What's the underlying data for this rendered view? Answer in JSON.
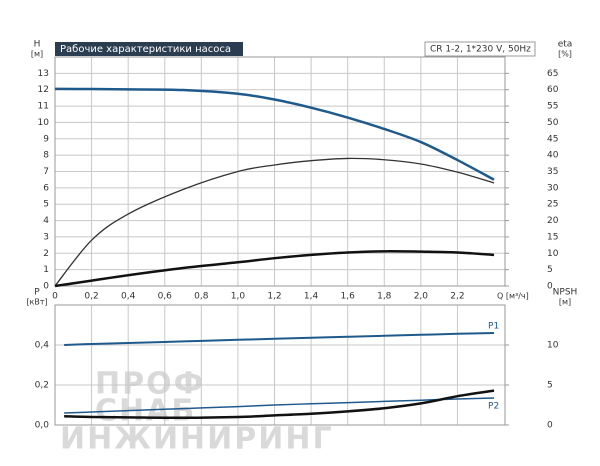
{
  "chart_data": [
    {
      "type": "line",
      "title": "Рабочие характеристики насоса",
      "subtitle": "CR 1-2, 1*230 V, 50Hz",
      "y_label": "H",
      "y_unit": "[м]",
      "y2_label": "eta",
      "y2_unit": "[%]",
      "x_label": "Q [м³/ч]",
      "x": [
        0,
        0.2,
        0.4,
        0.7,
        1.0,
        1.2,
        1.4,
        1.6,
        1.8,
        2.0,
        2.2,
        2.4
      ],
      "xlim": [
        0,
        2.46
      ],
      "xticks": [
        0,
        {
          "value": 0.2,
          "label": "0,2"
        },
        {
          "value": 0.4,
          "label": "0,4"
        },
        {
          "value": 0.6,
          "label": "0,6"
        },
        {
          "value": 0.8,
          "label": "0,8"
        },
        {
          "value": 1.0,
          "label": "1,0"
        },
        {
          "value": 1.2,
          "label": "1,2"
        },
        {
          "value": 1.4,
          "label": "1,4"
        },
        {
          "value": 1.6,
          "label": "1,6"
        },
        {
          "value": 1.8,
          "label": "1,8"
        },
        {
          "value": 2.0,
          "label": "2,0"
        },
        {
          "value": 2.2,
          "label": "2,2"
        }
      ],
      "ylim": [
        0,
        14
      ],
      "yticks": [
        0,
        1,
        2,
        3,
        4,
        5,
        6,
        7,
        8,
        9,
        10,
        11,
        12,
        13
      ],
      "y2lim": [
        0,
        70
      ],
      "y2ticks": [
        0,
        5,
        10,
        15,
        20,
        25,
        30,
        35,
        40,
        45,
        50,
        55,
        60,
        65
      ],
      "grid": true,
      "series": [
        {
          "color": "#1f5a8c",
          "values": [
            12.05,
            12.04,
            12.02,
            11.98,
            11.75,
            11.4,
            10.9,
            10.3,
            9.6,
            8.8,
            7.7,
            6.5
          ]
        },
        {
          "color": "#333333",
          "axis": "y2",
          "values": [
            0,
            14,
            22,
            29.5,
            35,
            37,
            38.3,
            39,
            38.6,
            37.3,
            34.8,
            31.5
          ]
        },
        {
          "color": "#111111",
          "values": [
            0,
            0.33,
            0.66,
            1.1,
            1.45,
            1.7,
            1.9,
            2.05,
            2.12,
            2.1,
            2.05,
            1.9
          ]
        }
      ]
    },
    {
      "type": "line",
      "y_label": "P",
      "y_unit": "[кВт]",
      "y2_label": "NPSH",
      "y2_unit": "[м]",
      "x": [
        0.05,
        0.2,
        0.4,
        0.7,
        1.0,
        1.2,
        1.4,
        1.6,
        1.8,
        2.0,
        2.2,
        2.4
      ],
      "xlim": [
        0,
        2.46
      ],
      "ylim": [
        0,
        0.6
      ],
      "yticks": [
        {
          "value": 0,
          "label": "0,0"
        },
        {
          "value": 0.2,
          "label": "0,2"
        },
        {
          "value": 0.4,
          "label": "0,4"
        }
      ],
      "y2lim": [
        0,
        15
      ],
      "y2ticks": [
        0,
        5,
        10
      ],
      "grid": true,
      "series": [
        {
          "name": "P1",
          "color": "#1f5a8c",
          "values": [
            0.4,
            0.405,
            0.41,
            0.418,
            0.426,
            0.431,
            0.436,
            0.441,
            0.446,
            0.451,
            0.456,
            0.46
          ]
        },
        {
          "name": "P2",
          "color": "#1f5a8c",
          "values": [
            0.06,
            0.065,
            0.072,
            0.082,
            0.092,
            0.1,
            0.106,
            0.112,
            0.118,
            0.124,
            0.13,
            0.135
          ]
        },
        {
          "color": "#111111",
          "axis": "y2",
          "values": [
            1.1,
            1.0,
            0.95,
            0.9,
            1.0,
            1.2,
            1.4,
            1.7,
            2.1,
            2.7,
            3.6,
            4.3
          ]
        }
      ]
    }
  ],
  "watermark": [
    "ПРОФ",
    "СНАБ",
    "ИНЖИНИРИНГ"
  ]
}
